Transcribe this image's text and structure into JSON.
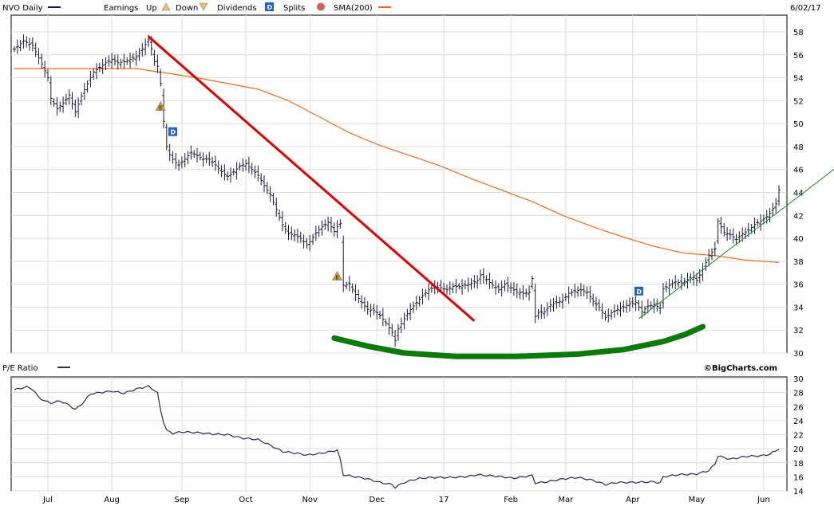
{
  "chart_data": [
    {
      "type": "ohlc",
      "legend": {
        "ticker_label": "NVO Daily",
        "earnings_label": "Earnings",
        "up_label": "Up",
        "down_label": "Down",
        "dividends_label": "Dividends",
        "splits_label": "Splits",
        "sma_label": "SMA(200)",
        "date_label": "6/02/17"
      },
      "colors": {
        "price_bars": "#1a1a3a",
        "sma": "#ee6a1c",
        "earnings_marker": "#c8a060",
        "dividend_marker": "#1f5fd0",
        "split_marker": "#c04040",
        "downtrend_line": "#e00000",
        "uptrend_line": "#1f8a1f",
        "rounded_bottom": "#0a7a0a"
      },
      "ylim": [
        30,
        58
      ],
      "yticks": [
        30,
        32,
        34,
        36,
        38,
        40,
        42,
        44,
        46,
        48,
        50,
        52,
        54,
        56,
        58
      ],
      "xticks": [
        "Jul",
        "Aug",
        "Sep",
        "Oct",
        "Nov",
        "Dec",
        "17",
        "Feb",
        "Mar",
        "Apr",
        "May",
        "Jun"
      ],
      "grid": true,
      "price_anchors": [
        [
          0,
          56.5
        ],
        [
          3,
          57.2
        ],
        [
          6,
          56.8
        ],
        [
          9,
          55.2
        ],
        [
          11,
          54.0
        ],
        [
          12,
          52.2
        ],
        [
          14,
          51.3
        ],
        [
          16,
          51.8
        ],
        [
          18,
          52.5
        ],
        [
          20,
          51.0
        ],
        [
          22,
          52.4
        ],
        [
          24,
          53.5
        ],
        [
          26,
          54.5
        ],
        [
          28,
          54.9
        ],
        [
          30,
          55.3
        ],
        [
          32,
          55.6
        ],
        [
          34,
          55.3
        ],
        [
          36,
          55.4
        ],
        [
          38,
          55.6
        ],
        [
          40,
          55.8
        ],
        [
          42,
          56.5
        ],
        [
          44,
          57.3
        ],
        [
          45,
          56.5
        ],
        [
          46,
          55.4
        ],
        [
          47,
          55.0
        ],
        [
          48,
          53.5
        ],
        [
          49,
          50.2
        ],
        [
          50,
          48.0
        ],
        [
          51,
          47.3
        ],
        [
          52,
          46.9
        ],
        [
          53,
          46.6
        ],
        [
          54,
          46.4
        ],
        [
          56,
          46.9
        ],
        [
          58,
          47.5
        ],
        [
          60,
          47.2
        ],
        [
          62,
          46.9
        ],
        [
          64,
          46.9
        ],
        [
          66,
          46.4
        ],
        [
          68,
          45.8
        ],
        [
          70,
          45.4
        ],
        [
          72,
          45.8
        ],
        [
          74,
          46.3
        ],
        [
          76,
          46.5
        ],
        [
          78,
          46.0
        ],
        [
          80,
          45.5
        ],
        [
          82,
          44.6
        ],
        [
          84,
          43.8
        ],
        [
          86,
          42.5
        ],
        [
          88,
          41.2
        ],
        [
          90,
          40.4
        ],
        [
          92,
          40.3
        ],
        [
          94,
          40.0
        ],
        [
          96,
          39.4
        ],
        [
          97,
          39.7
        ],
        [
          99,
          40.5
        ],
        [
          101,
          41.0
        ],
        [
          103,
          41.4
        ],
        [
          105,
          40.6
        ],
        [
          106,
          41.0
        ],
        [
          107,
          41.3
        ],
        [
          108,
          35.9
        ],
        [
          110,
          36.0
        ],
        [
          112,
          35.1
        ],
        [
          114,
          34.4
        ],
        [
          116,
          33.8
        ],
        [
          118,
          33.7
        ],
        [
          120,
          33.3
        ],
        [
          122,
          32.6
        ],
        [
          124,
          31.8
        ],
        [
          125,
          31.1
        ],
        [
          126,
          32.1
        ],
        [
          128,
          33.0
        ],
        [
          130,
          33.8
        ],
        [
          132,
          34.4
        ],
        [
          134,
          35.0
        ],
        [
          136,
          35.5
        ],
        [
          138,
          35.8
        ],
        [
          140,
          35.7
        ],
        [
          142,
          35.5
        ],
        [
          144,
          35.8
        ],
        [
          146,
          35.8
        ],
        [
          148,
          35.9
        ],
        [
          150,
          36.1
        ],
        [
          152,
          36.3
        ],
        [
          153,
          36.8
        ],
        [
          155,
          36.4
        ],
        [
          157,
          35.9
        ],
        [
          159,
          35.5
        ],
        [
          161,
          36.0
        ],
        [
          163,
          35.7
        ],
        [
          165,
          35.3
        ],
        [
          167,
          35.2
        ],
        [
          169,
          35.3
        ],
        [
          170,
          36.5
        ],
        [
          171,
          33.2
        ],
        [
          172,
          33.5
        ],
        [
          174,
          33.6
        ],
        [
          176,
          34.2
        ],
        [
          178,
          34.4
        ],
        [
          180,
          34.6
        ],
        [
          182,
          35.2
        ],
        [
          184,
          35.4
        ],
        [
          186,
          35.5
        ],
        [
          188,
          35.3
        ],
        [
          190,
          34.5
        ],
        [
          192,
          34.0
        ],
        [
          194,
          33.1
        ],
        [
          196,
          33.5
        ],
        [
          198,
          33.8
        ],
        [
          200,
          34.0
        ],
        [
          202,
          34.3
        ],
        [
          204,
          34.4
        ],
        [
          206,
          33.6
        ],
        [
          208,
          34.1
        ],
        [
          210,
          34.2
        ],
        [
          212,
          33.9
        ],
        [
          213,
          35.6
        ],
        [
          215,
          35.9
        ],
        [
          217,
          36.2
        ],
        [
          219,
          36.1
        ],
        [
          221,
          36.4
        ],
        [
          223,
          36.6
        ],
        [
          224,
          36.3
        ],
        [
          226,
          37.3
        ],
        [
          228,
          38.5
        ],
        [
          230,
          39.1
        ],
        [
          231,
          41.5
        ],
        [
          233,
          40.5
        ],
        [
          235,
          40.3
        ],
        [
          237,
          39.9
        ],
        [
          239,
          40.4
        ],
        [
          241,
          40.7
        ],
        [
          243,
          41.2
        ],
        [
          245,
          41.5
        ],
        [
          247,
          41.9
        ],
        [
          248,
          42.2
        ],
        [
          250,
          43.0
        ],
        [
          251,
          44.2
        ]
      ],
      "sma_anchors": [
        [
          0,
          54.8
        ],
        [
          20,
          54.8
        ],
        [
          40,
          54.8
        ],
        [
          50,
          54.4
        ],
        [
          60,
          54.0
        ],
        [
          70,
          53.5
        ],
        [
          80,
          53.0
        ],
        [
          90,
          52.0
        ],
        [
          100,
          50.6
        ],
        [
          110,
          49.2
        ],
        [
          120,
          48.1
        ],
        [
          130,
          47.2
        ],
        [
          140,
          46.3
        ],
        [
          150,
          45.2
        ],
        [
          160,
          44.2
        ],
        [
          170,
          43.2
        ],
        [
          180,
          42.0
        ],
        [
          190,
          41.0
        ],
        [
          200,
          40.1
        ],
        [
          210,
          39.3
        ],
        [
          220,
          38.7
        ],
        [
          230,
          38.5
        ],
        [
          240,
          38.1
        ],
        [
          251,
          37.9
        ]
      ],
      "event_markers": [
        {
          "type": "earnings",
          "label": "E",
          "bar_index": 48,
          "value": 51.5
        },
        {
          "type": "dividend",
          "label": "D",
          "bar_index": 52,
          "value": 49.3
        },
        {
          "type": "earnings",
          "label": "E",
          "bar_index": 106,
          "value": 36.7
        },
        {
          "type": "dividend",
          "label": "D",
          "bar_index": 205,
          "value": 35.4
        }
      ],
      "drawn_lines": [
        {
          "name": "downtrend",
          "from": [
            44,
            57.6
          ],
          "to": [
            151,
            32.8
          ]
        },
        {
          "name": "uptrend",
          "from": [
            205,
            33.0
          ],
          "to": [
            270,
            46.2
          ]
        }
      ],
      "rounded_bottom": [
        [
          105,
          31.3
        ],
        [
          116,
          30.6
        ],
        [
          128,
          30.0
        ],
        [
          145,
          29.7
        ],
        [
          165,
          29.7
        ],
        [
          185,
          29.9
        ],
        [
          200,
          30.3
        ],
        [
          213,
          31.0
        ],
        [
          220,
          31.6
        ],
        [
          226,
          32.3
        ]
      ]
    },
    {
      "type": "line",
      "label": "P/E Ratio",
      "credit": "©BigCharts.com",
      "ylim": [
        14,
        30
      ],
      "yticks": [
        14,
        16,
        18,
        20,
        22,
        24,
        26,
        28,
        30
      ],
      "xticks": [
        "Jul",
        "Aug",
        "Sep",
        "Oct",
        "Nov",
        "Dec",
        "17",
        "Feb",
        "Mar",
        "Apr",
        "May",
        "Jun"
      ],
      "grid": true,
      "pe_anchors": [
        [
          0,
          28.4
        ],
        [
          4,
          28.8
        ],
        [
          6,
          28.5
        ],
        [
          8,
          27.3
        ],
        [
          10,
          26.8
        ],
        [
          12,
          26.5
        ],
        [
          15,
          26.8
        ],
        [
          18,
          26.2
        ],
        [
          20,
          25.6
        ],
        [
          22,
          26.3
        ],
        [
          25,
          27.8
        ],
        [
          28,
          28.0
        ],
        [
          32,
          28.2
        ],
        [
          36,
          27.9
        ],
        [
          40,
          28.5
        ],
        [
          44,
          28.9
        ],
        [
          46,
          28.3
        ],
        [
          47,
          27.9
        ],
        [
          48,
          25.5
        ],
        [
          49,
          23.8
        ],
        [
          50,
          22.6
        ],
        [
          52,
          22.2
        ],
        [
          55,
          22.4
        ],
        [
          60,
          22.3
        ],
        [
          65,
          22.1
        ],
        [
          70,
          22.0
        ],
        [
          75,
          21.5
        ],
        [
          80,
          21.3
        ],
        [
          84,
          20.5
        ],
        [
          88,
          19.6
        ],
        [
          92,
          19.4
        ],
        [
          96,
          19.1
        ],
        [
          100,
          19.3
        ],
        [
          104,
          19.6
        ],
        [
          106,
          19.8
        ],
        [
          107,
          18.4
        ],
        [
          108,
          16.3
        ],
        [
          112,
          16.0
        ],
        [
          116,
          15.7
        ],
        [
          120,
          15.2
        ],
        [
          124,
          14.9
        ],
        [
          125,
          14.5
        ],
        [
          128,
          15.2
        ],
        [
          132,
          15.7
        ],
        [
          136,
          15.9
        ],
        [
          142,
          15.9
        ],
        [
          148,
          16.0
        ],
        [
          152,
          16.3
        ],
        [
          158,
          16.1
        ],
        [
          164,
          15.8
        ],
        [
          170,
          16.2
        ],
        [
          171,
          15.1
        ],
        [
          175,
          15.3
        ],
        [
          180,
          15.7
        ],
        [
          185,
          15.9
        ],
        [
          190,
          15.5
        ],
        [
          194,
          14.9
        ],
        [
          198,
          15.2
        ],
        [
          204,
          15.2
        ],
        [
          210,
          15.3
        ],
        [
          212,
          15.1
        ],
        [
          213,
          16.0
        ],
        [
          218,
          16.3
        ],
        [
          224,
          16.4
        ],
        [
          228,
          16.9
        ],
        [
          230,
          17.8
        ],
        [
          231,
          19.0
        ],
        [
          235,
          18.5
        ],
        [
          240,
          18.9
        ],
        [
          245,
          19.0
        ],
        [
          248,
          19.2
        ],
        [
          251,
          20.0
        ]
      ]
    }
  ]
}
